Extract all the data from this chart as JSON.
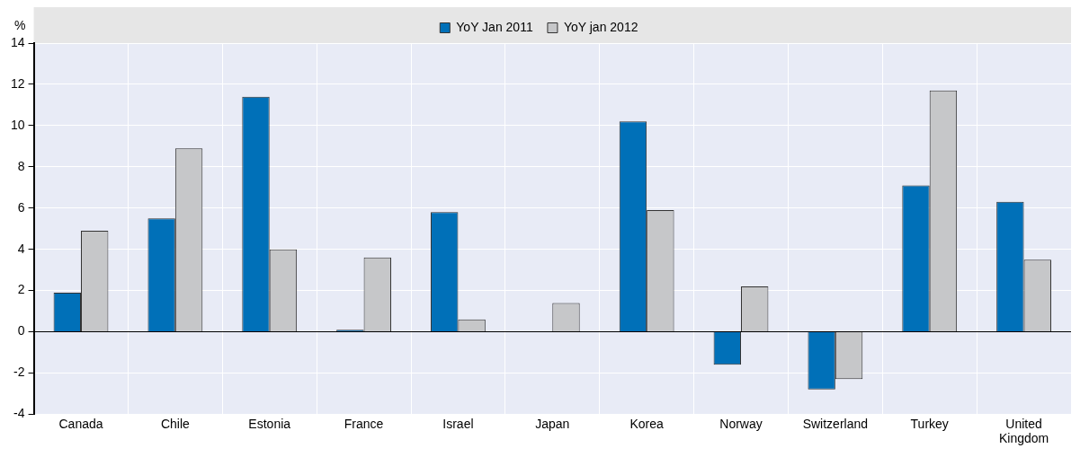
{
  "chart_data": {
    "type": "bar",
    "ylabel": "%",
    "categories": [
      "Canada",
      "Chile",
      "Estonia",
      "France",
      "Israel",
      "Japan",
      "Korea",
      "Norway",
      "Switzerland",
      "Turkey",
      "United Kingdom"
    ],
    "series": [
      {
        "name": "YoY Jan 2011",
        "color": "#0070b8",
        "values": [
          1.9,
          5.5,
          11.4,
          0.1,
          5.8,
          0,
          10.2,
          -1.6,
          -2.8,
          7.1,
          6.3
        ]
      },
      {
        "name": "YoY jan 2012",
        "color": "#c6c7c9",
        "values": [
          4.9,
          8.9,
          4.0,
          3.6,
          0.6,
          1.4,
          5.9,
          2.2,
          -2.3,
          11.7,
          3.5
        ]
      }
    ],
    "ylim": [
      -4,
      14
    ],
    "yticks": [
      -4,
      -2,
      0,
      2,
      4,
      6,
      8,
      10,
      12,
      14
    ],
    "grid": true,
    "legend": "top"
  }
}
